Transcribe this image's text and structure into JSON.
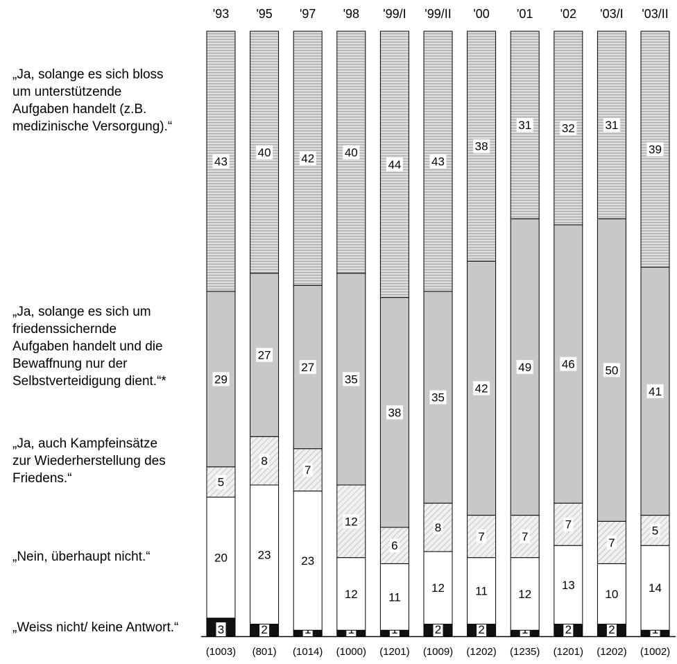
{
  "chart_data": {
    "type": "bar",
    "stacked": true,
    "percent": true,
    "categories": [
      "'93",
      "'95",
      "'97",
      "'98",
      "'99/I",
      "'99/II",
      "'00",
      "'01",
      "'02",
      "'03/I",
      "'03/II"
    ],
    "sample_sizes": [
      "(1003)",
      "(801)",
      "(1014)",
      "(1000)",
      "(1201)",
      "(1009)",
      "(1202)",
      "(1235)",
      "(1201)",
      "(1202)",
      "(1002)"
    ],
    "series": [
      {
        "name": "„Weiss nicht/ keine Antwort.“",
        "values": [
          3,
          2,
          1,
          1,
          1,
          2,
          2,
          1,
          2,
          2,
          1
        ]
      },
      {
        "name": "„Nein, überhaupt nicht.“",
        "values": [
          20,
          23,
          23,
          12,
          11,
          12,
          11,
          12,
          13,
          10,
          14
        ]
      },
      {
        "name": "„Ja, auch Kampfeinsätze zur Wiederherstellung des Friedens.“",
        "values": [
          5,
          8,
          7,
          12,
          6,
          8,
          7,
          7,
          7,
          7,
          5
        ]
      },
      {
        "name": "„Ja, solange es sich um friedenssichernde Aufgaben handelt und die Bewaffnung nur der Selbstverteidigung dient.“*",
        "values": [
          29,
          27,
          27,
          35,
          38,
          35,
          42,
          49,
          46,
          50,
          41
        ]
      },
      {
        "name": "„Ja, solange es sich bloss um unterstützende Aufgaben handelt (z.B. medizinische Versorgung).“",
        "values": [
          43,
          40,
          42,
          40,
          44,
          43,
          38,
          31,
          32,
          31,
          39
        ]
      }
    ],
    "colors": [
      "#111111",
      "#ffffff",
      "#e4e4e4",
      "#c8c8c8",
      "#b8b8b8"
    ],
    "legend_lines": [
      "„Ja, solange es sich bloss\num unterstützende\nAufgaben handelt (z.B.\nmedizinische Versorgung).“",
      "„Ja, solange es sich um\nfriedenssichernde\nAufgaben handelt und die\nBewaffnung nur der\nSelbstverteidigung dient.“*",
      "„Ja, auch Kampfeinsätze\nzur Wiederherstellung des\nFriedens.“",
      "„Nein, überhaupt nicht.“",
      "„Weiss nicht/ keine Antwort.“"
    ],
    "legend_placement": "left",
    "ylim": [
      0,
      100
    ],
    "grid": false
  }
}
